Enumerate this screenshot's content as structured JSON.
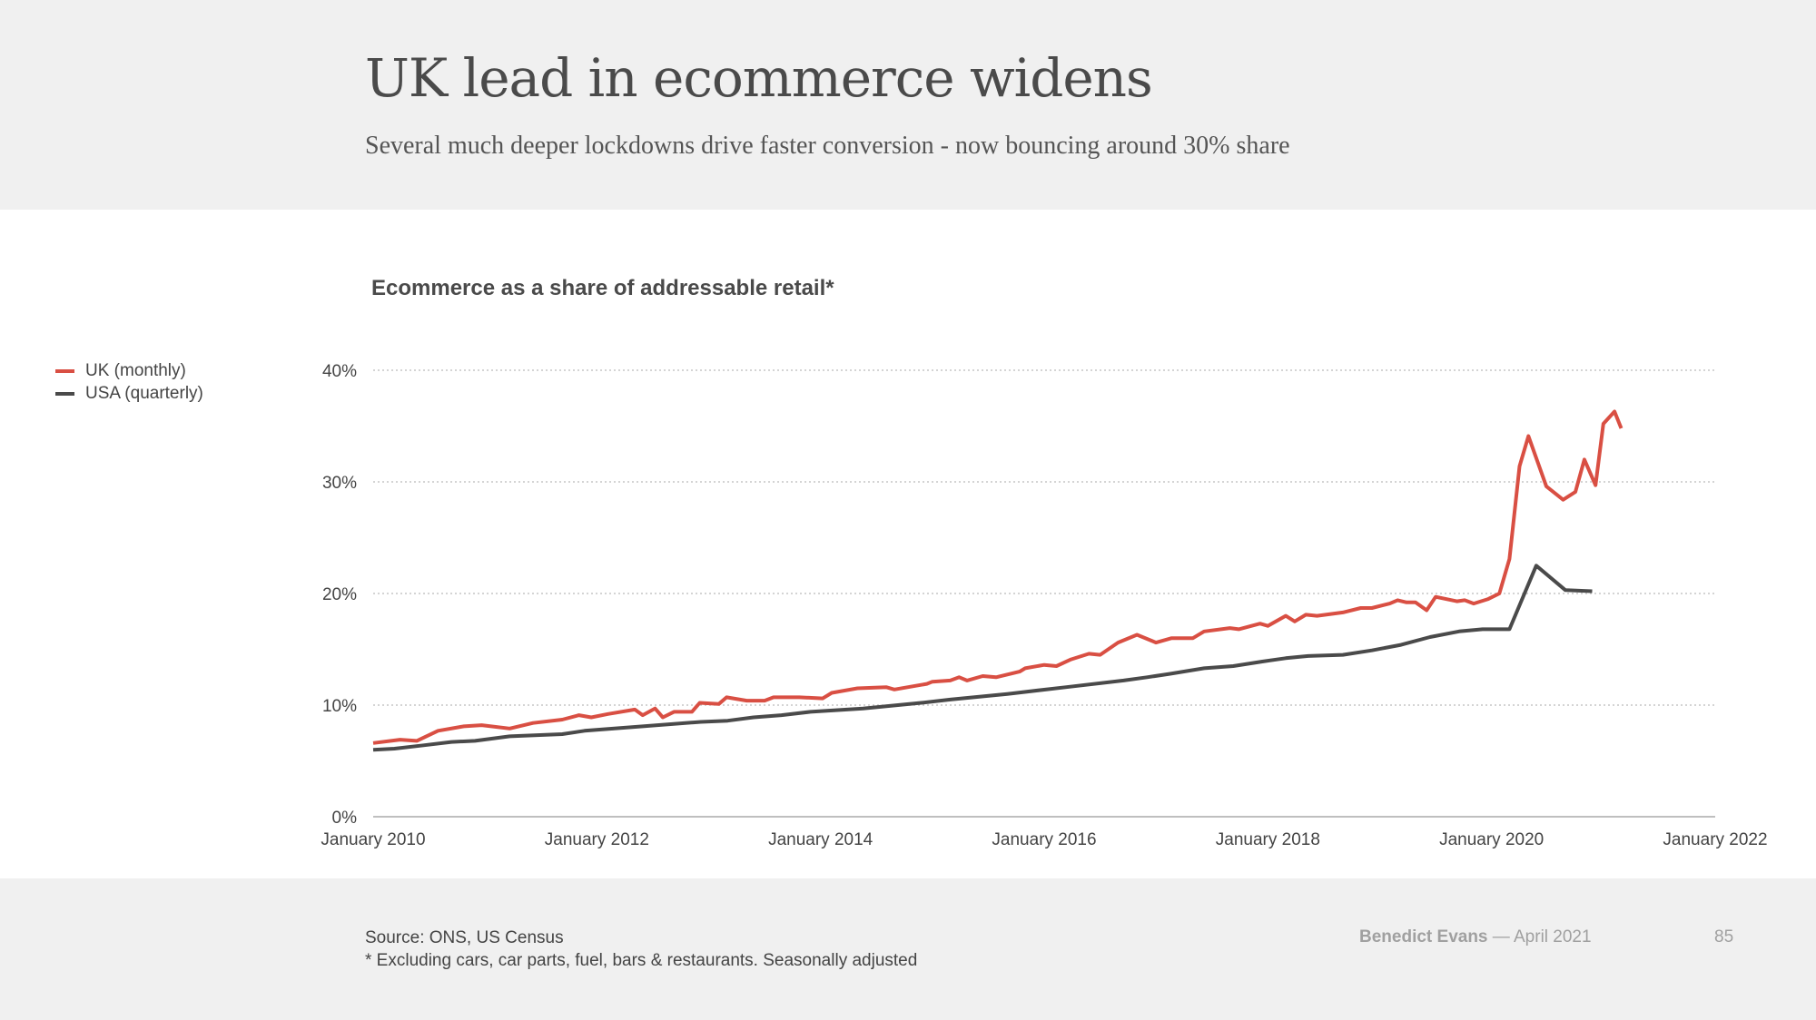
{
  "header": {
    "title": "UK lead in ecommerce widens",
    "subtitle": "Several much deeper lockdowns drive faster conversion - now bouncing around 30% share"
  },
  "footer": {
    "source": "Source: ONS, US Census",
    "note": "* Excluding cars, car parts, fuel, bars & restaurants. Seasonally adjusted",
    "author": "Benedict Evans",
    "date": "— April 2021",
    "page_number": "85"
  },
  "chart_data": {
    "type": "line",
    "title": "Ecommerce as a share of addressable retail*",
    "xlabel": "",
    "ylabel": "",
    "xlim": [
      2010,
      2022
    ],
    "ylim": [
      0,
      40
    ],
    "x_ticks": [
      2010,
      2012,
      2014,
      2016,
      2018,
      2020,
      2022
    ],
    "x_tick_labels": [
      "January 2010",
      "January 2012",
      "January 2014",
      "January 2016",
      "January 2018",
      "January 2020",
      "January 2022"
    ],
    "y_ticks": [
      0,
      10,
      20,
      30,
      40
    ],
    "y_tick_labels": [
      "0%",
      "10%",
      "20%",
      "30%",
      "40%"
    ],
    "grid": "horizontal dotted",
    "legend_position": "left",
    "series": [
      {
        "name": "UK (monthly)",
        "color": "#d94f43",
        "x": [
          2010.0,
          2010.24,
          2010.39,
          2010.58,
          2010.81,
          2010.97,
          2011.22,
          2011.43,
          2011.69,
          2011.84,
          2011.95,
          2012.1,
          2012.34,
          2012.41,
          2012.52,
          2012.59,
          2012.69,
          2012.85,
          2012.92,
          2013.09,
          2013.16,
          2013.34,
          2013.5,
          2013.58,
          2013.81,
          2014.02,
          2014.1,
          2014.33,
          2014.59,
          2014.66,
          2014.95,
          2015.0,
          2015.16,
          2015.24,
          2015.31,
          2015.45,
          2015.57,
          2015.78,
          2015.83,
          2016.0,
          2016.11,
          2016.24,
          2016.4,
          2016.5,
          2016.66,
          2016.83,
          2017.0,
          2017.14,
          2017.33,
          2017.43,
          2017.66,
          2017.74,
          2017.93,
          2018.0,
          2018.16,
          2018.24,
          2018.34,
          2018.44,
          2018.67,
          2018.83,
          2018.93,
          2019.09,
          2019.16,
          2019.24,
          2019.32,
          2019.42,
          2019.5,
          2019.69,
          2019.76,
          2019.84,
          2019.97,
          2020.07,
          2020.16,
          2020.25,
          2020.33,
          2020.49,
          2020.64,
          2020.75,
          2020.83,
          2020.93,
          2021.0,
          2021.1,
          2021.16
        ],
        "values": [
          6.6,
          6.9,
          6.8,
          7.7,
          8.1,
          8.2,
          7.9,
          8.4,
          8.7,
          9.1,
          8.9,
          9.2,
          9.6,
          9.1,
          9.7,
          8.9,
          9.4,
          9.4,
          10.2,
          10.1,
          10.7,
          10.4,
          10.4,
          10.7,
          10.7,
          10.6,
          11.1,
          11.5,
          11.6,
          11.4,
          11.9,
          12.1,
          12.2,
          12.5,
          12.2,
          12.6,
          12.5,
          13.0,
          13.3,
          13.6,
          13.5,
          14.1,
          14.6,
          14.5,
          15.6,
          16.3,
          15.6,
          16.0,
          16.0,
          16.6,
          16.9,
          16.8,
          17.3,
          17.1,
          18.0,
          17.5,
          18.1,
          18.0,
          18.3,
          18.7,
          18.7,
          19.1,
          19.4,
          19.2,
          19.2,
          18.5,
          19.7,
          19.3,
          19.4,
          19.1,
          19.5,
          20.0,
          23.1,
          31.4,
          34.1,
          29.6,
          28.4,
          29.1,
          32.0,
          29.7,
          35.2,
          36.3,
          34.8
        ]
      },
      {
        "name": "USA (quarterly)",
        "color": "#4a4a4a",
        "x": [
          2010.0,
          2010.19,
          2010.45,
          2010.7,
          2010.91,
          2011.22,
          2011.69,
          2011.89,
          2012.41,
          2012.93,
          2013.17,
          2013.4,
          2013.65,
          2013.91,
          2014.38,
          2014.9,
          2015.16,
          2015.67,
          2016.19,
          2016.71,
          2016.92,
          2017.12,
          2017.43,
          2017.69,
          2017.95,
          2018.16,
          2018.36,
          2018.67,
          2018.93,
          2019.19,
          2019.45,
          2019.71,
          2019.92,
          2020.16,
          2020.4,
          2020.66,
          2020.9
        ],
        "values": [
          6.0,
          6.1,
          6.4,
          6.7,
          6.8,
          7.2,
          7.4,
          7.7,
          8.1,
          8.5,
          8.6,
          8.9,
          9.1,
          9.4,
          9.7,
          10.2,
          10.5,
          11.0,
          11.6,
          12.2,
          12.5,
          12.8,
          13.3,
          13.5,
          13.9,
          14.2,
          14.4,
          14.5,
          14.9,
          15.4,
          16.1,
          16.6,
          16.8,
          16.8,
          22.5,
          20.3,
          20.2
        ]
      }
    ]
  }
}
